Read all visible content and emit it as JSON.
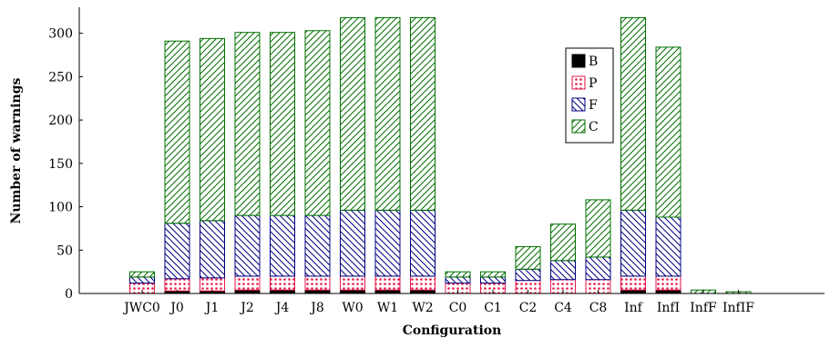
{
  "chart_data": {
    "type": "bar",
    "stacked": true,
    "xlabel": "Configuration",
    "ylabel": "Number of warnings",
    "ylim": [
      0,
      330
    ],
    "yticks": [
      0,
      50,
      100,
      150,
      200,
      250,
      300
    ],
    "categories": [
      "JWC0",
      "J0",
      "J1",
      "J2",
      "J4",
      "J8",
      "W0",
      "W1",
      "W2",
      "C0",
      "C1",
      "C2",
      "C4",
      "C8",
      "Inf",
      "InfI",
      "InfF",
      "InfIF"
    ],
    "series": [
      {
        "name": "B",
        "color": "#000000",
        "pattern": "solid",
        "values": [
          0,
          3,
          3,
          4,
          4,
          4,
          4,
          4,
          4,
          0,
          0,
          0,
          0,
          0,
          4,
          4,
          0,
          0
        ]
      },
      {
        "name": "P",
        "color": "#e6194b",
        "pattern": "dots",
        "values": [
          12,
          14,
          15,
          16,
          16,
          16,
          16,
          16,
          16,
          12,
          12,
          15,
          16,
          16,
          16,
          16,
          0,
          0
        ]
      },
      {
        "name": "F",
        "color": "#000080",
        "pattern": "north-west-lines",
        "values": [
          7,
          64,
          66,
          70,
          70,
          70,
          76,
          76,
          76,
          7,
          7,
          13,
          22,
          26,
          76,
          68,
          0,
          0
        ]
      },
      {
        "name": "C",
        "color": "#007000",
        "pattern": "north-east-lines",
        "values": [
          6,
          210,
          210,
          211,
          211,
          213,
          222,
          222,
          222,
          6,
          6,
          26,
          42,
          66,
          222,
          196,
          4,
          2
        ]
      }
    ],
    "legend": {
      "position": "top-right",
      "entries": [
        "B",
        "P",
        "F",
        "C"
      ]
    },
    "grid": false
  }
}
